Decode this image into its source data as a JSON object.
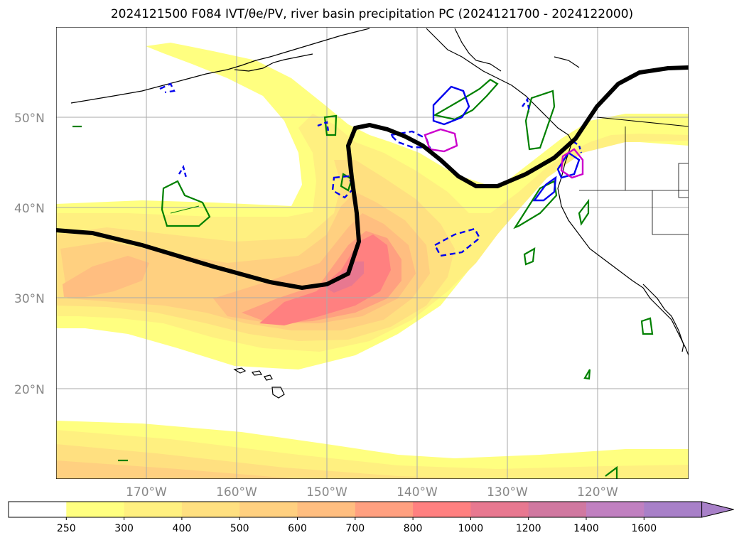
{
  "title": "2024121500 F084 IVT/θe/PV, river basin precipitation PC (2024121700 - 2024122000)",
  "map": {
    "lat_labels": [
      "50°N",
      "40°N",
      "30°N",
      "20°N"
    ],
    "lon_labels": [
      "170°W",
      "160°W",
      "150°W",
      "140°W",
      "130°W",
      "120°W"
    ]
  },
  "colorbar": {
    "levels": [
      "250",
      "300",
      "400",
      "500",
      "600",
      "700",
      "800",
      "1000",
      "1200",
      "1400",
      "1600"
    ],
    "colors": [
      "#ffffff",
      "#ffff80",
      "#fff080",
      "#ffe080",
      "#ffd080",
      "#ffbe80",
      "#ffa080",
      "#ff8080",
      "#e87890",
      "#d078a0",
      "#c080c0",
      "#a880c8"
    ]
  },
  "colors": {
    "theta_contour": "#000000",
    "pc_positive_blue": "#0000ee",
    "pc_green": "#008000",
    "pc_magenta": "#cc00cc",
    "coast": "#000000",
    "grid": "#aaaaaa"
  }
}
